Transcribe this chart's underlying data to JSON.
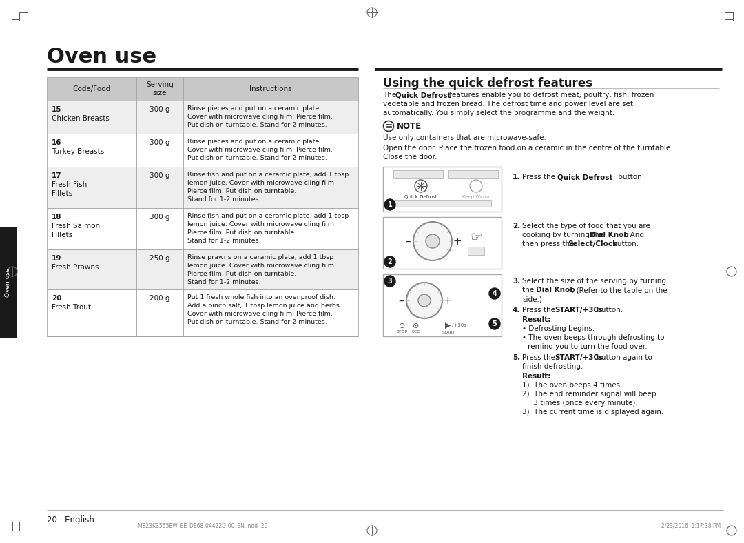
{
  "page_bg": "#ffffff",
  "title": "Oven use",
  "section2_title": "Using the quick defrost features",
  "note_label": "NOTE",
  "note_line1": "Use only containers that are microwave-safe.",
  "note_line2": "Open the door. Place the frozen food on a ceramic in the centre of the turntable.",
  "note_line3": "Close the door.",
  "step1_bold": "Quick Defrost",
  "step1_rest": " button.",
  "step2_line1": "Select the type of food that you are",
  "step2_line2_pre": "cooking by turning the ",
  "step2_line2_bold": "Dial Knob",
  "step2_line2_post": ". And",
  "step2_line3_pre": "then press the ",
  "step2_line3_bold": "Select/Clock",
  "step2_line3_post": " button.",
  "step3_line1": "Select the size of the serving by turning",
  "step3_line2_pre": "the ",
  "step3_line2_bold": "Dial Knob",
  "step3_line2_post": ". (Refer to the table on the",
  "step3_line3": "side.)",
  "step4_pre": "Press the ",
  "step4_bold": "START/+30s",
  "step4_post": " button.",
  "result1_label": "Result:",
  "result1_item1": "Defrosting begins.",
  "result1_item2a": "The oven beeps through defrosting to",
  "result1_item2b": "remind you to turn the food over.",
  "step5_pre": "Press the ",
  "step5_bold": "START/+30s",
  "step5_post": " button again to",
  "step5_line2": "finish defrosting.",
  "result2_label": "Result:",
  "result2_item1": "1)  The oven beeps 4 times.",
  "result2_item2a": "2)  The end reminder signal will beep",
  "result2_item2b": "     3 times (once every minute).",
  "result2_item3": "3)  The current time is displayed again.",
  "table_header": [
    "Code/Food",
    "Serving\nsize",
    "Instructions"
  ],
  "table_rows": [
    [
      "15\nChicken Breasts",
      "300 g",
      "Rinse pieces and put on a ceramic plate.\nCover with microwave cling film. Pierce film.\nPut dish on turntable. Stand for 2 minutes."
    ],
    [
      "16\nTurkey Breasts",
      "300 g",
      "Rinse pieces and put on a ceramic plate.\nCover with microwave cling film. Pierce film.\nPut dish on turntable. Stand for 2 minutes."
    ],
    [
      "17\nFresh Fish\nFillets",
      "300 g",
      "Rinse fish and put on a ceramic plate, add 1 tbsp\nlemon juice. Cover with microwave cling film.\nPierce film. Put dish on turntable.\nStand for 1-2 minutes."
    ],
    [
      "18\nFresh Salmon\nFillets",
      "300 g",
      "Rinse fish and put on a ceramic plate, add 1 tbsp\nlemon juice. Cover with microwave cling film.\nPierce film. Put dish on turntable.\nStand for 1-2 minutes."
    ],
    [
      "19\nFresh Prawns",
      "250 g",
      "Rinse prawns on a ceramic plate, add 1 tbsp\nlemon juice. Cover with microwave cling film.\nPierce film. Put dish on turntable.\nStand for 1-2 minutes."
    ],
    [
      "20\nFresh Trout",
      "200 g",
      "Put 1 fresh whole fish into an ovenproof dish.\nAdd a pinch salt, 1 tbsp lemon juice and herbs.\nCover with microwave cling film. Pierce film.\nPut dish on turntable. Stand for 2 minutes."
    ]
  ],
  "footer_text": "20   English",
  "footer_file": "MS23K3555EW_EE_DE68-04422D-00_EN.indd  20",
  "footer_date": "2/23/2016  1:17:38 PM",
  "tab_color": "#1a1a1a",
  "tab_text": "Oven use",
  "header_bg": "#c8c8c8",
  "row_bg_odd": "#eeeeee",
  "row_bg_even": "#ffffff",
  "dark_line": "#1a1a1a",
  "light_line": "#aaaaaa",
  "text_color": "#1a1a1a",
  "gray_text": "#888888"
}
